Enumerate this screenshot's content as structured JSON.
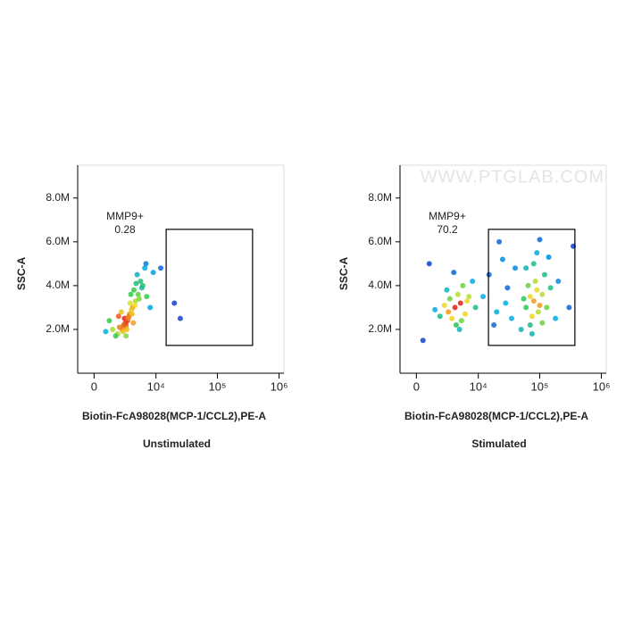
{
  "chart_data": [
    {
      "type": "scatter",
      "title": "Unstimulated",
      "x_label": "Biotin-FcA98028(MCP-1/CCL2),PE-A",
      "y_label": "SSC-A",
      "xscale": "biexponential",
      "xlim": [
        -1300,
        1200000
      ],
      "ylim": [
        0,
        9500000
      ],
      "xticks": [
        0,
        {
          "value": 10000,
          "label": "10⁴"
        },
        {
          "value": 100000,
          "label": "10⁵"
        },
        {
          "value": 1000000,
          "label": "10⁶"
        }
      ],
      "yticks": [
        {
          "value": 2000000,
          "label": "2.0M"
        },
        {
          "value": 4000000,
          "label": "4.0M"
        },
        {
          "value": 6000000,
          "label": "6.0M"
        },
        {
          "value": 8000000,
          "label": "8.0M"
        }
      ],
      "gate": {
        "label": "MMP9+",
        "value": 0.28,
        "x": [
          14700,
          372000
        ],
        "y": [
          1270000,
          6570000
        ]
      },
      "x": [
        2000,
        2500,
        3000,
        2800,
        3500,
        2200,
        3200,
        4000,
        4500,
        3800,
        2600,
        3000,
        3400,
        5000,
        4200,
        5500,
        6000,
        3600,
        1800,
        1500,
        2400,
        4800,
        6500,
        7000,
        2900,
        3100,
        3300,
        2700,
        3900,
        4400,
        5200,
        1200,
        8000,
        900,
        2100,
        3700,
        4600,
        5800,
        12000,
        20000,
        25000,
        9000,
        3000,
        4100,
        6800
      ],
      "values": [
        1800000,
        2000000,
        2200000,
        2500000,
        2700000,
        2100000,
        2400000,
        3000000,
        3300000,
        2900000,
        1900000,
        2100000,
        2600000,
        3600000,
        3800000,
        4200000,
        4000000,
        3200000,
        1700000,
        2000000,
        2800000,
        4500000,
        4800000,
        3500000,
        2300000,
        2000000,
        2500000,
        2200000,
        2700000,
        3100000,
        3400000,
        2400000,
        3000000,
        1900000,
        2600000,
        3600000,
        4100000,
        3900000,
        4800000,
        3200000,
        2500000,
        4600000,
        1700000,
        2300000,
        5000000
      ]
    },
    {
      "type": "scatter",
      "title": "Stimulated",
      "x_label": "Biotin-FcA98028(MCP-1/CCL2),PE-A",
      "y_label": "SSC-A",
      "xscale": "biexponential",
      "watermark": "WWW.PTGLAB.COM",
      "xlim": [
        -1300,
        1200000
      ],
      "ylim": [
        0,
        9500000
      ],
      "xticks": [
        0,
        {
          "value": 10000,
          "label": "10⁴"
        },
        {
          "value": 100000,
          "label": "10⁵"
        },
        {
          "value": 1000000,
          "label": "10⁶"
        }
      ],
      "yticks": [
        {
          "value": 2000000,
          "label": "2.0M"
        },
        {
          "value": 4000000,
          "label": "4.0M"
        },
        {
          "value": 6000000,
          "label": "6.0M"
        },
        {
          "value": 8000000,
          "label": "8.0M"
        }
      ],
      "gate": {
        "label": "MMP9+",
        "value": 70.2,
        "x": [
          14700,
          372000
        ],
        "y": [
          1270000,
          6570000
        ]
      },
      "x": [
        3000,
        4000,
        5000,
        3500,
        4500,
        2500,
        6000,
        5500,
        3200,
        4200,
        7000,
        2000,
        8000,
        3800,
        4800,
        9000,
        2800,
        6500,
        1500,
        5200,
        12000,
        15000,
        20000,
        25000,
        30000,
        18000,
        40000,
        35000,
        22000,
        28000,
        60000,
        70000,
        80000,
        90000,
        100000,
        75000,
        85000,
        110000,
        65000,
        95000,
        120000,
        55000,
        130000,
        80000,
        70000,
        150000,
        90000,
        60000,
        180000,
        100000,
        50000,
        140000,
        200000,
        75000,
        110000,
        300000,
        350000,
        500,
        1000
      ],
      "values": [
        2800000,
        3000000,
        3200000,
        2500000,
        3600000,
        3100000,
        2700000,
        4000000,
        3400000,
        2200000,
        3500000,
        2600000,
        4200000,
        4600000,
        2000000,
        3000000,
        3800000,
        3300000,
        2900000,
        2400000,
        3500000,
        4500000,
        2800000,
        5200000,
        3900000,
        2200000,
        4800000,
        2500000,
        6000000,
        3200000,
        3000000,
        3500000,
        3300000,
        3800000,
        3100000,
        2600000,
        4200000,
        3600000,
        4000000,
        2800000,
        4500000,
        3400000,
        3000000,
        5000000,
        2200000,
        3900000,
        5500000,
        4800000,
        2500000,
        6100000,
        2000000,
        5300000,
        4200000,
        1800000,
        2300000,
        3000000,
        5800000,
        1500000,
        5000000
      ]
    }
  ]
}
